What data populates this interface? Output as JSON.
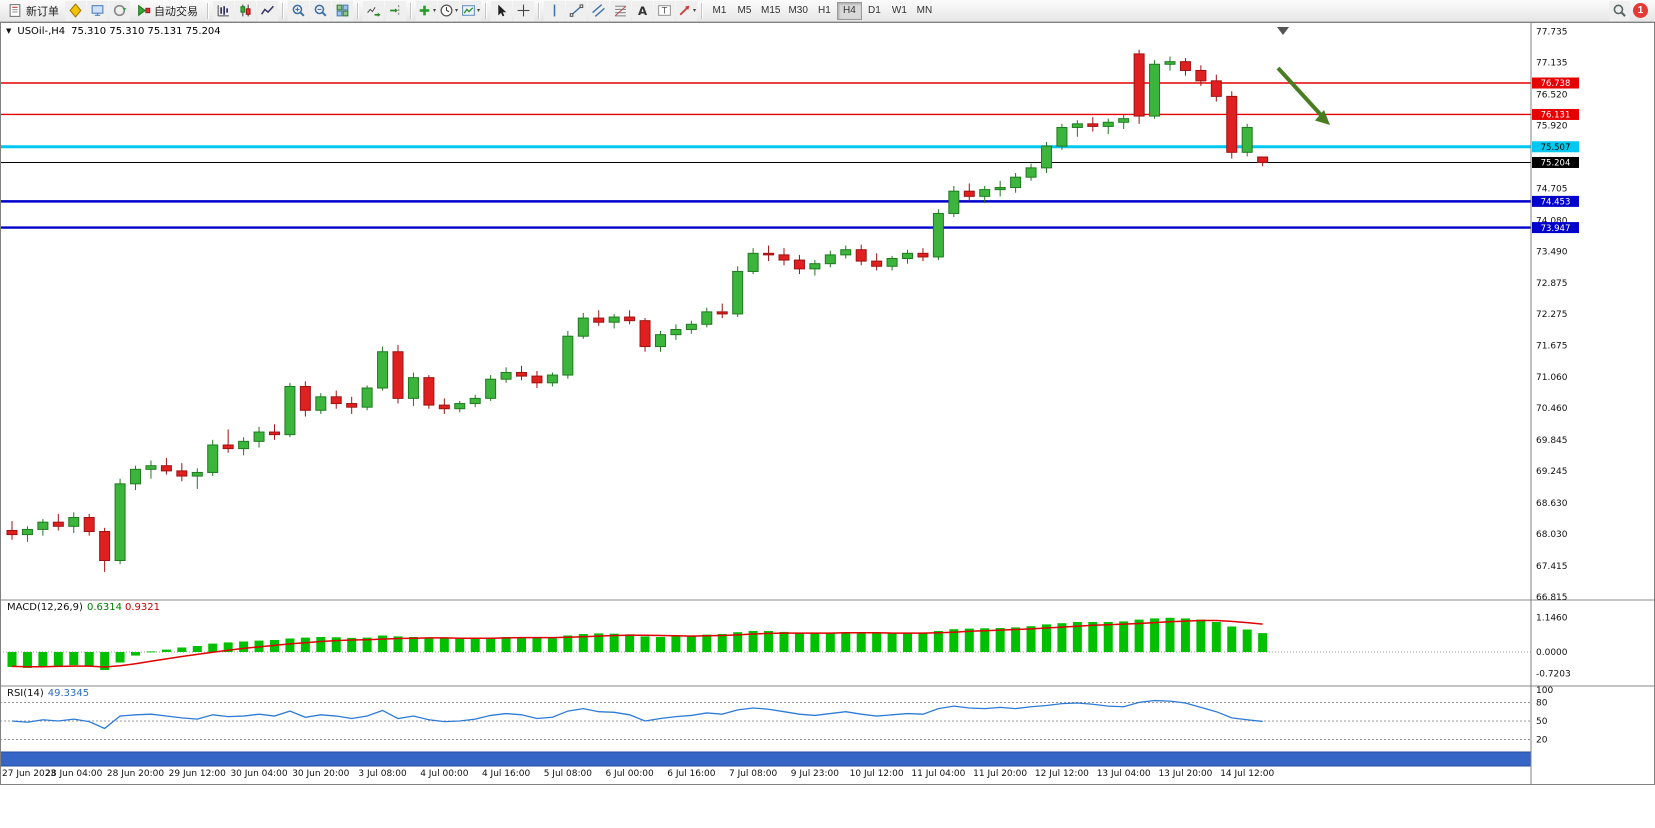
{
  "toolbar": {
    "new_order": "新订单",
    "autotrading": "自动交易",
    "timeframes": [
      "M1",
      "M5",
      "M15",
      "M30",
      "H1",
      "H4",
      "D1",
      "W1",
      "MN"
    ],
    "active_timeframe": "H4",
    "notification_count": "1"
  },
  "chart": {
    "title": "USOil-,H4",
    "ohlc_text": "75.310 75.310 75.131 75.204",
    "open": "75.310",
    "high": "75.310",
    "low": "75.131",
    "close": "75.204"
  },
  "macd": {
    "label": "MACD(12,26,9)",
    "macd_value": "0.6314",
    "signal_value": "0.9321",
    "scale_labels": [
      "1.1460",
      "0.0000",
      "-0.7203"
    ]
  },
  "rsi": {
    "label": "RSI(14)",
    "value": "49.3345",
    "scale_labels": [
      "100",
      "80",
      "50",
      "20"
    ]
  },
  "price_scale_labels": [
    "77.735",
    "77.135",
    "76.520",
    "75.920",
    "74.705",
    "74.080",
    "73.490",
    "72.875",
    "72.275",
    "71.675",
    "71.060",
    "70.460",
    "69.845",
    "69.245",
    "68.630",
    "68.030",
    "67.415",
    "66.815"
  ],
  "levels": [
    {
      "price": 76.738,
      "label": "76.738",
      "color": "#e60000",
      "text_color": "#ffffff",
      "width": 1.4
    },
    {
      "price": 76.131,
      "label": "76.131",
      "color": "#e60000",
      "text_color": "#ffffff",
      "width": 1.4
    },
    {
      "price": 75.507,
      "label": "75.507",
      "color": "#00c8f0",
      "text_color": "#000000",
      "width": 3
    },
    {
      "price": 74.453,
      "label": "74.453",
      "color": "#0000cc",
      "text_color": "#ffffff",
      "width": 2.4
    },
    {
      "price": 73.947,
      "label": "73.947",
      "color": "#0000cc",
      "text_color": "#ffffff",
      "width": 2.4
    }
  ],
  "current_price": {
    "price": 75.204,
    "label": "75.204",
    "line_color": "#000000",
    "badge_color": "#000000",
    "text_color": "#ffffff"
  },
  "time_labels": [
    "27 Jun 2023",
    "28 Jun 04:00",
    "28 Jun 20:00",
    "29 Jun 12:00",
    "30 Jun 04:00",
    "30 Jun 20:00",
    "3 Jul 08:00",
    "4 Jul 00:00",
    "4 Jul 16:00",
    "5 Jul 08:00",
    "6 Jul 00:00",
    "6 Jul 16:00",
    "7 Jul 08:00",
    "9 Jul 23:00",
    "10 Jul 12:00",
    "11 Jul 04:00",
    "11 Jul 20:00",
    "12 Jul 12:00",
    "13 Jul 04:00",
    "13 Jul 20:00",
    "14 Jul 12:00"
  ],
  "annotations": {
    "trend_arrow": {
      "direction": "down-right",
      "color": "#4a7d22"
    },
    "shift_marker": true
  },
  "colors": {
    "candle_up": "#3cb53c",
    "candle_up_border": "#1f7a1f",
    "candle_down": "#e02020",
    "candle_down_border": "#9e1212",
    "macd_histogram": "#00c000",
    "macd_signal": "#e00000",
    "rsi_line": "#2e7bd6",
    "scrollbar": "#3566c6"
  },
  "chart_data": {
    "type": "candlestick",
    "symbol": "USOil-",
    "period": "H4",
    "ylim": [
      66.815,
      77.735
    ],
    "label_every": 4,
    "candles": [
      [
        68.1,
        68.28,
        67.92,
        68.02
      ],
      [
        68.02,
        68.18,
        67.88,
        68.12
      ],
      [
        68.12,
        68.32,
        68.0,
        68.26
      ],
      [
        68.26,
        68.42,
        68.1,
        68.18
      ],
      [
        68.18,
        68.45,
        68.05,
        68.35
      ],
      [
        68.35,
        68.42,
        68.0,
        68.08
      ],
      [
        68.08,
        68.15,
        67.3,
        67.52
      ],
      [
        67.52,
        69.1,
        67.45,
        69.0
      ],
      [
        69.0,
        69.35,
        68.88,
        69.28
      ],
      [
        69.28,
        69.45,
        69.1,
        69.35
      ],
      [
        69.35,
        69.5,
        69.18,
        69.25
      ],
      [
        69.25,
        69.4,
        69.05,
        69.15
      ],
      [
        69.15,
        69.3,
        68.9,
        69.22
      ],
      [
        69.22,
        69.85,
        69.15,
        69.75
      ],
      [
        69.75,
        70.05,
        69.6,
        69.68
      ],
      [
        69.68,
        69.9,
        69.55,
        69.82
      ],
      [
        69.82,
        70.1,
        69.7,
        70.0
      ],
      [
        70.0,
        70.15,
        69.85,
        69.95
      ],
      [
        69.95,
        70.95,
        69.9,
        70.88
      ],
      [
        70.88,
        70.98,
        70.3,
        70.42
      ],
      [
        70.42,
        70.75,
        70.35,
        70.68
      ],
      [
        70.68,
        70.8,
        70.45,
        70.55
      ],
      [
        70.55,
        70.68,
        70.35,
        70.48
      ],
      [
        70.48,
        70.9,
        70.42,
        70.85
      ],
      [
        70.85,
        71.65,
        70.8,
        71.55
      ],
      [
        71.55,
        71.68,
        70.55,
        70.65
      ],
      [
        70.65,
        71.15,
        70.5,
        71.05
      ],
      [
        71.05,
        71.1,
        70.45,
        70.52
      ],
      [
        70.52,
        70.65,
        70.35,
        70.45
      ],
      [
        70.45,
        70.6,
        70.38,
        70.55
      ],
      [
        70.55,
        70.72,
        70.48,
        70.65
      ],
      [
        70.65,
        71.1,
        70.6,
        71.02
      ],
      [
        71.02,
        71.25,
        70.95,
        71.15
      ],
      [
        71.15,
        71.28,
        71.0,
        71.08
      ],
      [
        71.08,
        71.18,
        70.85,
        70.95
      ],
      [
        70.95,
        71.15,
        70.88,
        71.1
      ],
      [
        71.1,
        71.95,
        71.03,
        71.85
      ],
      [
        71.85,
        72.3,
        71.8,
        72.2
      ],
      [
        72.2,
        72.35,
        72.05,
        72.12
      ],
      [
        72.12,
        72.28,
        72.0,
        72.22
      ],
      [
        72.22,
        72.35,
        72.08,
        72.15
      ],
      [
        72.15,
        72.2,
        71.55,
        71.65
      ],
      [
        71.65,
        71.95,
        71.55,
        71.88
      ],
      [
        71.88,
        72.08,
        71.78,
        71.98
      ],
      [
        71.98,
        72.15,
        71.9,
        72.08
      ],
      [
        72.08,
        72.4,
        72.02,
        72.32
      ],
      [
        72.32,
        72.48,
        72.2,
        72.28
      ],
      [
        72.28,
        73.2,
        72.22,
        73.1
      ],
      [
        73.1,
        73.55,
        73.05,
        73.45
      ],
      [
        73.45,
        73.6,
        73.3,
        73.42
      ],
      [
        73.42,
        73.55,
        73.22,
        73.32
      ],
      [
        73.32,
        73.42,
        73.05,
        73.15
      ],
      [
        73.15,
        73.32,
        73.02,
        73.25
      ],
      [
        73.25,
        73.5,
        73.18,
        73.42
      ],
      [
        73.42,
        73.6,
        73.35,
        73.52
      ],
      [
        73.52,
        73.62,
        73.22,
        73.3
      ],
      [
        73.3,
        73.45,
        73.12,
        73.2
      ],
      [
        73.2,
        73.4,
        73.12,
        73.35
      ],
      [
        73.35,
        73.52,
        73.25,
        73.45
      ],
      [
        73.45,
        73.55,
        73.3,
        73.38
      ],
      [
        73.38,
        74.3,
        73.32,
        74.22
      ],
      [
        74.22,
        74.75,
        74.15,
        74.65
      ],
      [
        74.65,
        74.8,
        74.45,
        74.55
      ],
      [
        74.55,
        74.75,
        74.42,
        74.68
      ],
      [
        74.68,
        74.85,
        74.55,
        74.72
      ],
      [
        74.72,
        75.0,
        74.62,
        74.92
      ],
      [
        74.92,
        75.18,
        74.85,
        75.1
      ],
      [
        75.1,
        75.6,
        75.0,
        75.52
      ],
      [
        75.52,
        75.95,
        75.45,
        75.88
      ],
      [
        75.88,
        76.02,
        75.7,
        75.95
      ],
      [
        75.95,
        76.08,
        75.8,
        75.9
      ],
      [
        75.9,
        76.05,
        75.75,
        75.98
      ],
      [
        75.98,
        76.12,
        75.85,
        76.05
      ],
      [
        77.3,
        77.38,
        75.95,
        76.1
      ],
      [
        76.1,
        77.18,
        76.05,
        77.1
      ],
      [
        77.1,
        77.25,
        76.98,
        77.15
      ],
      [
        77.15,
        77.22,
        76.88,
        76.98
      ],
      [
        76.98,
        77.08,
        76.68,
        76.78
      ],
      [
        76.78,
        76.9,
        76.38,
        76.48
      ],
      [
        76.48,
        76.58,
        75.28,
        75.4
      ],
      [
        75.4,
        75.95,
        75.32,
        75.88
      ],
      [
        75.31,
        75.31,
        75.131,
        75.204
      ]
    ],
    "macd_histogram": [
      -0.5,
      -0.53,
      -0.5,
      -0.47,
      -0.44,
      -0.48,
      -0.6,
      -0.35,
      -0.12,
      0.02,
      0.08,
      0.15,
      0.2,
      0.28,
      0.32,
      0.35,
      0.38,
      0.4,
      0.45,
      0.48,
      0.5,
      0.49,
      0.47,
      0.48,
      0.55,
      0.52,
      0.5,
      0.48,
      0.45,
      0.44,
      0.45,
      0.48,
      0.5,
      0.5,
      0.48,
      0.47,
      0.55,
      0.6,
      0.62,
      0.61,
      0.59,
      0.52,
      0.5,
      0.52,
      0.54,
      0.58,
      0.6,
      0.66,
      0.7,
      0.7,
      0.67,
      0.63,
      0.62,
      0.64,
      0.66,
      0.64,
      0.62,
      0.62,
      0.63,
      0.64,
      0.7,
      0.76,
      0.78,
      0.79,
      0.8,
      0.82,
      0.86,
      0.92,
      0.96,
      1.0,
      1.0,
      1.0,
      1.02,
      1.08,
      1.12,
      1.14,
      1.12,
      1.08,
      1.0,
      0.85,
      0.75,
      0.63
    ],
    "macd_signal": [
      -0.48,
      -0.49,
      -0.49,
      -0.48,
      -0.47,
      -0.47,
      -0.5,
      -0.46,
      -0.39,
      -0.31,
      -0.23,
      -0.15,
      -0.08,
      -0.01,
      0.06,
      0.12,
      0.17,
      0.22,
      0.27,
      0.31,
      0.35,
      0.38,
      0.4,
      0.41,
      0.43,
      0.45,
      0.46,
      0.47,
      0.47,
      0.46,
      0.46,
      0.46,
      0.47,
      0.48,
      0.48,
      0.48,
      0.49,
      0.51,
      0.53,
      0.55,
      0.56,
      0.56,
      0.55,
      0.54,
      0.53,
      0.54,
      0.55,
      0.57,
      0.6,
      0.62,
      0.63,
      0.63,
      0.63,
      0.63,
      0.64,
      0.64,
      0.64,
      0.63,
      0.63,
      0.63,
      0.64,
      0.66,
      0.69,
      0.71,
      0.73,
      0.75,
      0.77,
      0.8,
      0.83,
      0.86,
      0.89,
      0.91,
      0.93,
      0.95,
      0.98,
      1.01,
      1.03,
      1.05,
      1.05,
      1.02,
      0.98,
      0.93
    ],
    "rsi": [
      50,
      48,
      52,
      50,
      53,
      49,
      38,
      58,
      60,
      61,
      58,
      55,
      53,
      60,
      57,
      58,
      61,
      58,
      66,
      56,
      60,
      58,
      54,
      58,
      67,
      54,
      58,
      52,
      49,
      50,
      53,
      59,
      62,
      60,
      54,
      56,
      66,
      70,
      65,
      64,
      60,
      50,
      54,
      57,
      59,
      63,
      61,
      68,
      71,
      69,
      65,
      61,
      59,
      62,
      65,
      61,
      58,
      60,
      62,
      61,
      70,
      74,
      71,
      70,
      72,
      70,
      73,
      75,
      78,
      79,
      77,
      74,
      73,
      80,
      83,
      82,
      79,
      72,
      65,
      55,
      52,
      49.3
    ]
  }
}
